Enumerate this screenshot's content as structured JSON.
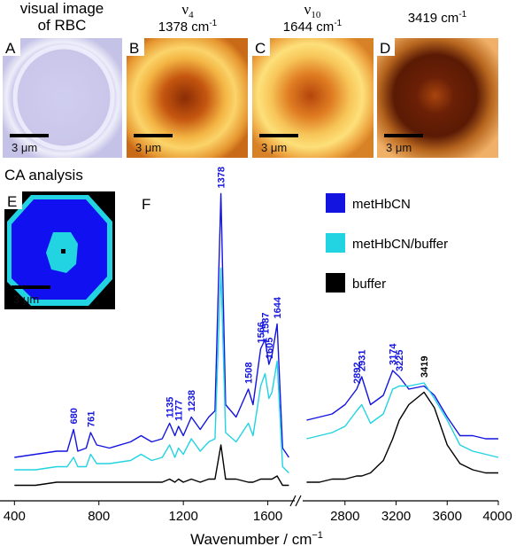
{
  "panels": [
    {
      "letter": "A",
      "title": [
        "visual image",
        "of RBC"
      ],
      "scale": "3 μm"
    },
    {
      "letter": "B",
      "symbol": "ν",
      "sub": "4",
      "line2": "1378 cm",
      "sup": "-1",
      "scale": "3 μm"
    },
    {
      "letter": "C",
      "symbol": "ν",
      "sub": "10",
      "line2": "1644 cm",
      "sup": "-1",
      "scale": "3 μm"
    },
    {
      "letter": "D",
      "line2": "3419 cm",
      "sup": "-1",
      "scale": "3 μm"
    },
    {
      "letter": "E",
      "title": [
        "CA analysis"
      ],
      "scale": "3 μm"
    }
  ],
  "chart_data": {
    "type": "line",
    "panel_label": "F",
    "x_label": "Wavenumber / cm",
    "x_label_sup": "−1",
    "xlim": [
      340,
      4000
    ],
    "x_break": [
      1715,
      2490
    ],
    "xticks": [
      400,
      800,
      1200,
      1600,
      2800,
      3200,
      3600,
      4000
    ],
    "ylim": [
      0,
      100
    ],
    "x": [
      400,
      500,
      600,
      650,
      680,
      700,
      740,
      761,
      790,
      850,
      950,
      1000,
      1050,
      1100,
      1135,
      1160,
      1177,
      1200,
      1238,
      1280,
      1320,
      1350,
      1378,
      1400,
      1450,
      1508,
      1530,
      1566,
      1587,
      1605,
      1620,
      1644,
      1670,
      1700,
      2000,
      2500,
      2600,
      2700,
      2800,
      2892,
      2931,
      3000,
      3100,
      3174,
      3225,
      3300,
      3419,
      3500,
      3600,
      3700,
      3800,
      3900,
      4000
    ],
    "series": [
      {
        "name": "metHbCN",
        "color": "#1414e0",
        "values": [
          14,
          15,
          16,
          16,
          23,
          16,
          17,
          22,
          18,
          17,
          19,
          21,
          19,
          20,
          25,
          21,
          24,
          21,
          27,
          23,
          27,
          29,
          99,
          31,
          27,
          36,
          31,
          49,
          52,
          44,
          47,
          57,
          17,
          14,
          null,
          26,
          27,
          28,
          31,
          36,
          40,
          31,
          34,
          42,
          40,
          36,
          37,
          34,
          27,
          21,
          21,
          20,
          20
        ]
      },
      {
        "name": "metHbCN/buffer",
        "color": "#22d3e2",
        "values": [
          10,
          10,
          11,
          11,
          14,
          11,
          11,
          15,
          12,
          12,
          13,
          15,
          13,
          14,
          18,
          14,
          17,
          15,
          20,
          16,
          19,
          20,
          75,
          22,
          19,
          25,
          21,
          37,
          41,
          33,
          35,
          45,
          11,
          9,
          null,
          20,
          21,
          22,
          24,
          29,
          31,
          25,
          28,
          36,
          37,
          37,
          38,
          33,
          26,
          18,
          16,
          15,
          14
        ]
      },
      {
        "name": "buffer",
        "color": "#000000",
        "values": [
          5,
          5,
          6,
          6,
          6,
          6,
          6,
          6,
          6,
          6,
          6,
          6,
          6,
          6,
          7,
          6,
          7,
          6,
          7,
          6,
          7,
          7,
          18,
          7,
          7,
          6,
          6,
          7,
          7,
          7,
          7,
          8,
          5,
          5,
          null,
          6,
          6,
          7,
          7,
          8,
          8,
          9,
          13,
          20,
          26,
          31,
          35,
          30,
          18,
          12,
          10,
          9,
          9
        ]
      }
    ],
    "peak_groups": [
      {
        "series": 0,
        "peaks": [
          680,
          761,
          1135,
          1177,
          1238,
          1378,
          1508,
          1566,
          1587,
          1605,
          1644,
          2892,
          2931,
          3174,
          3225
        ]
      },
      {
        "series": 2,
        "peaks": [
          3419
        ]
      }
    ]
  }
}
